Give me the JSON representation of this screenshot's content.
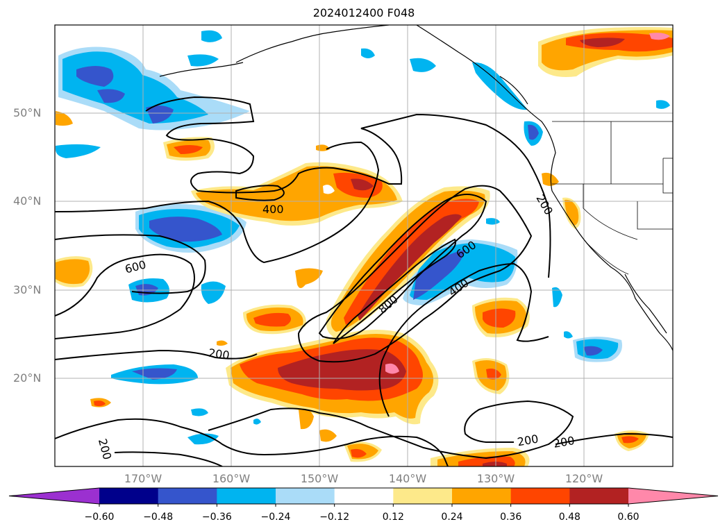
{
  "title": "2024012400 F048",
  "lat_labels": [
    "50°N",
    "40°N",
    "30°N",
    "20°N"
  ],
  "lon_labels": [
    "170°W",
    "160°W",
    "150°W",
    "140°W",
    "130°W",
    "120°W"
  ],
  "colorbar": {
    "ticks": [
      "−0.60",
      "−0.48",
      "−0.36",
      "−0.24",
      "−0.12",
      "0.12",
      "0.24",
      "0.36",
      "0.48",
      "0.60"
    ],
    "colors": [
      "#9b30d0",
      "#00008b",
      "#3555cc",
      "#00b4f0",
      "#aadcf8",
      "#ffffff",
      "#fde98a",
      "#ffa500",
      "#ff4500",
      "#b22222",
      "#ff88aa"
    ]
  },
  "contour_labels": [
    "400",
    "200",
    "600",
    "600",
    "800",
    "400",
    "200",
    "200",
    "200",
    "200"
  ],
  "map": {
    "land_fill": "none",
    "coastline_color": "#000000",
    "grid_color": "#b0b0b0"
  }
}
